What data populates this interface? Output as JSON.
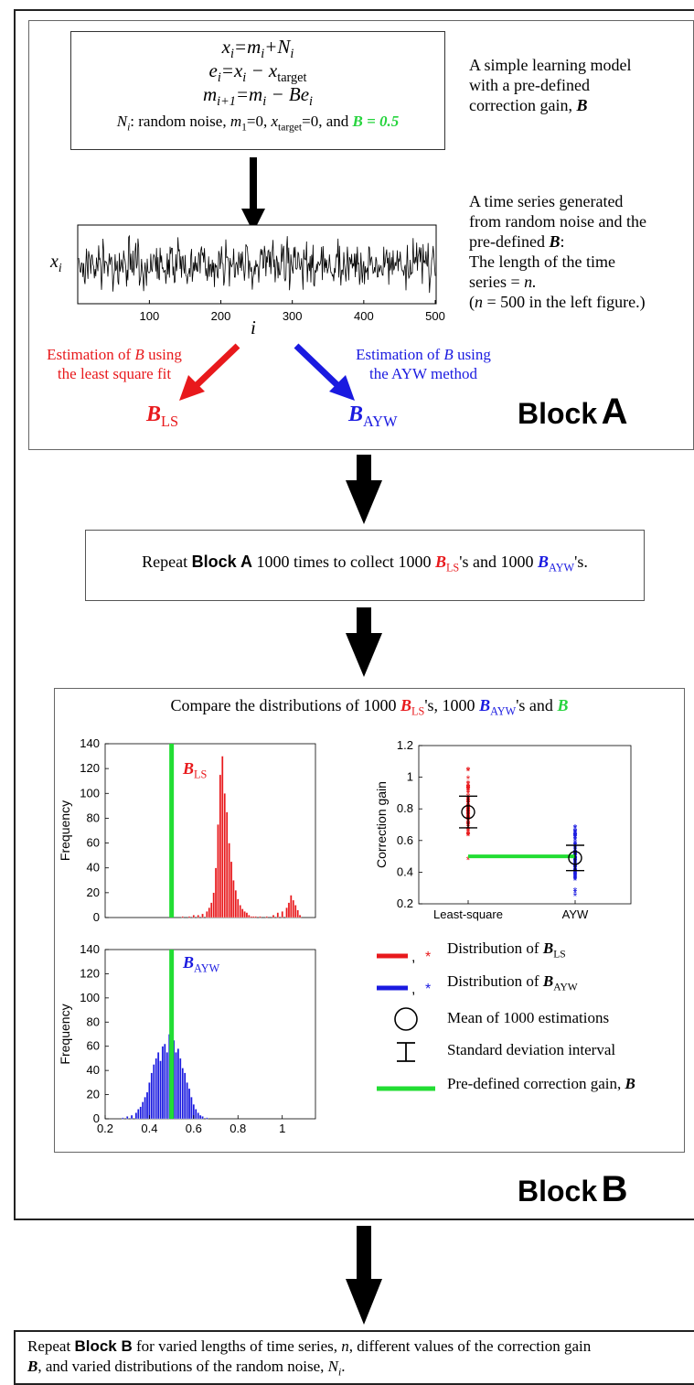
{
  "colors": {
    "red": "#e8191c",
    "blue": "#1a1ae0",
    "green": "#22dd33",
    "black": "#000000"
  },
  "model": {
    "eq1_lhs": "x",
    "eq1_rest": "=m",
    "eq1_rest2": "+N",
    "eq2_lhs": "e",
    "eq2_rest": "=x",
    "eq2_minus": " − x",
    "eq2_sub": "target",
    "eq3_lhs": "m",
    "eq3_sub": "i+1",
    "eq3_rest": "=m",
    "eq3_rest2": " − Be",
    "noise_line": ": random noise, ",
    "noise_m1": "=0, ",
    "noise_target": "=0, and ",
    "b_value": "B = 0.5"
  },
  "descriptions": {
    "model_desc": [
      "A simple learning model",
      "with a pre-defined",
      "correction gain, "
    ],
    "series_desc": [
      "A time series generated",
      "from random noise and the",
      "pre-defined ",
      "The length of the time",
      "series = ",
      "(",
      " = 500 in the left figure.)"
    ]
  },
  "timeseries": {
    "y_label": "x",
    "x_label": "i",
    "x_ticks": [
      "100",
      "200",
      "300",
      "400",
      "500"
    ]
  },
  "estimation": {
    "ls_label": [
      "Estimation of ",
      " using",
      "the least square fit"
    ],
    "ayw_label": [
      "Estimation of ",
      " using",
      "the AYW method"
    ],
    "b_ls": "B",
    "b_ls_sub": "LS",
    "b_ayw": "B",
    "b_ayw_sub": "AYW"
  },
  "block_a_title": {
    "word": "Block",
    "letter": "A"
  },
  "block_b_title": {
    "word": "Block",
    "letter": "B"
  },
  "repeat_a": {
    "pre": "Repeat ",
    "block": "Block A",
    "mid": " 1000 times to collect 1000 ",
    "mid2": "'s and 1000 ",
    "end": "'s."
  },
  "compare": {
    "pre": "Compare the distributions of 1000 ",
    "mid": "'s, 1000 ",
    "mid2": "'s and "
  },
  "hist_top": {
    "ylabel": "Frequency",
    "y_ticks": [
      "0",
      "20",
      "40",
      "60",
      "80",
      "100",
      "120",
      "140"
    ]
  },
  "hist_bottom": {
    "ylabel": "Frequency",
    "y_ticks": [
      "0",
      "20",
      "40",
      "60",
      "80",
      "100",
      "120",
      "140"
    ],
    "x_ticks": [
      "0.2",
      "0.4",
      "0.6",
      "0.8",
      "1"
    ]
  },
  "gain_plot": {
    "ylabel": "Correction gain",
    "y_ticks": [
      "0.2",
      "0.4",
      "0.6",
      "0.8",
      "1",
      "1.2"
    ],
    "x_ticks": [
      "Least-square",
      "AYW"
    ]
  },
  "legend": {
    "ls": "Distribution of ",
    "ayw": "Distribution of ",
    "mean": "Mean of 1000 estimations",
    "sd": "Standard deviation interval",
    "predef": "Pre-defined correction gain, ",
    "comma": ","
  },
  "repeat_b": {
    "pre": "Repeat ",
    "block": "Block B",
    "mid": " for varied lengths of time series, ",
    "n": "n",
    "mid2": ", different values of the correction gain",
    "line2a": ", and varied distributions of the random noise, ",
    "end": "."
  },
  "chart_data": [
    {
      "type": "bar",
      "title": "",
      "xlabel": "",
      "ylabel": "Frequency",
      "xlim": [
        0.2,
        1.15
      ],
      "ylim": [
        0,
        140
      ],
      "series": [
        {
          "name": "B_LS",
          "x": [
            0.55,
            0.58,
            0.6,
            0.62,
            0.64,
            0.66,
            0.67,
            0.68,
            0.69,
            0.7,
            0.71,
            0.72,
            0.73,
            0.74,
            0.75,
            0.76,
            0.77,
            0.78,
            0.79,
            0.8,
            0.81,
            0.82,
            0.83,
            0.84,
            0.85,
            0.86,
            0.87,
            0.88,
            0.9,
            0.93,
            0.96,
            0.98,
            1.0,
            1.02,
            1.03,
            1.04,
            1.05,
            1.06,
            1.07,
            1.08
          ],
          "values": [
            1,
            1,
            2,
            2,
            3,
            5,
            8,
            12,
            20,
            40,
            75,
            115,
            130,
            100,
            85,
            60,
            45,
            30,
            22,
            15,
            10,
            7,
            5,
            4,
            2,
            1,
            1,
            1,
            1,
            1,
            2,
            4,
            5,
            8,
            12,
            18,
            14,
            10,
            6,
            2
          ]
        }
      ],
      "reference_line": {
        "x": 0.5,
        "y_top": 140
      }
    },
    {
      "type": "bar",
      "title": "",
      "xlabel": "",
      "ylabel": "Frequency",
      "xlim": [
        0.2,
        1.15
      ],
      "ylim": [
        0,
        140
      ],
      "series": [
        {
          "name": "B_AYW",
          "x": [
            0.28,
            0.3,
            0.32,
            0.34,
            0.35,
            0.36,
            0.37,
            0.38,
            0.39,
            0.4,
            0.41,
            0.42,
            0.43,
            0.44,
            0.45,
            0.46,
            0.47,
            0.48,
            0.49,
            0.5,
            0.51,
            0.52,
            0.53,
            0.54,
            0.55,
            0.56,
            0.57,
            0.58,
            0.59,
            0.6,
            0.61,
            0.62,
            0.63,
            0.64,
            0.66
          ],
          "values": [
            1,
            2,
            3,
            5,
            8,
            10,
            14,
            18,
            22,
            30,
            38,
            45,
            50,
            55,
            48,
            60,
            62,
            55,
            70,
            78,
            65,
            55,
            58,
            50,
            42,
            38,
            30,
            25,
            18,
            12,
            8,
            5,
            3,
            2,
            1
          ]
        }
      ],
      "reference_line": {
        "x": 0.5,
        "y_top": 140
      }
    },
    {
      "type": "scatter",
      "title": "",
      "xlabel": "",
      "ylabel": "Correction gain",
      "categories": [
        "Least-square",
        "AYW"
      ],
      "ylim": [
        0.2,
        1.2
      ],
      "series": [
        {
          "name": "Least-square",
          "mean": 0.78,
          "sd_low": 0.68,
          "sd_high": 0.88,
          "min": 0.47,
          "max": 1.1
        },
        {
          "name": "AYW",
          "mean": 0.49,
          "sd_low": 0.41,
          "sd_high": 0.57,
          "min": 0.22,
          "max": 0.75
        }
      ],
      "reference_line": {
        "y": 0.5
      }
    }
  ]
}
